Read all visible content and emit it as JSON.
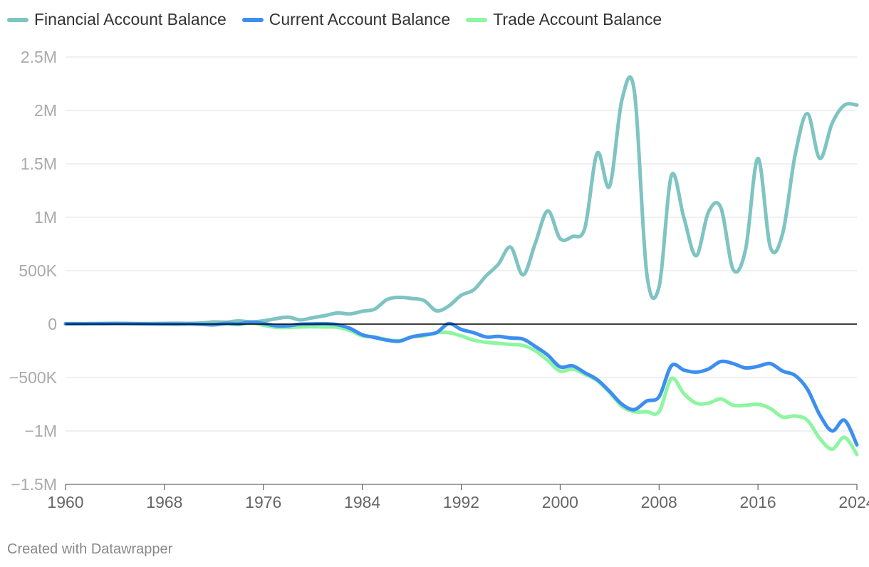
{
  "colors": {
    "financial": "#7ec4c2",
    "current": "#3d8ef0",
    "trade": "#8ef5a0",
    "grid": "#e1e1e1",
    "zero": "#000000",
    "tick_text": "#aaaaaa"
  },
  "footer": {
    "credit": "Created with Datawrapper"
  },
  "chart_data": {
    "type": "line",
    "title": "",
    "xlabel": "",
    "ylabel": "",
    "xlim": [
      1960,
      2024
    ],
    "ylim": [
      -1500000,
      2500000
    ],
    "grid": true,
    "legend_position": "top-left",
    "x_ticks": [
      1960,
      1968,
      1976,
      1984,
      1992,
      2000,
      2008,
      2016,
      2024
    ],
    "x_tick_labels": [
      "1960",
      "1968",
      "1976",
      "1984",
      "1992",
      "2000",
      "2008",
      "2016",
      "2024"
    ],
    "y_ticks": [
      2500000,
      2000000,
      1500000,
      1000000,
      500000,
      0,
      -500000,
      -1000000,
      -1500000
    ],
    "y_tick_labels": [
      "2.5M",
      "2M",
      "1.5M",
      "1M",
      "500K",
      "0",
      "−500K",
      "−1M",
      "−1.5M"
    ],
    "x": [
      1960,
      1961,
      1962,
      1963,
      1964,
      1965,
      1966,
      1967,
      1968,
      1969,
      1970,
      1971,
      1972,
      1973,
      1974,
      1975,
      1976,
      1977,
      1978,
      1979,
      1980,
      1981,
      1982,
      1983,
      1984,
      1985,
      1986,
      1987,
      1988,
      1989,
      1990,
      1991,
      1992,
      1993,
      1994,
      1995,
      1996,
      1997,
      1998,
      1999,
      2000,
      2001,
      2002,
      2003,
      2004,
      2005,
      2006,
      2007,
      2008,
      2009,
      2010,
      2011,
      2012,
      2013,
      2014,
      2015,
      2016,
      2017,
      2018,
      2019,
      2020,
      2021,
      2022,
      2023,
      2024
    ],
    "series": [
      {
        "name": "Financial Account Balance",
        "values": [
          2000,
          3000,
          4000,
          5000,
          5000,
          4000,
          4000,
          5000,
          7000,
          8000,
          7000,
          10000,
          20000,
          18000,
          30000,
          20000,
          30000,
          50000,
          65000,
          40000,
          60000,
          80000,
          105000,
          95000,
          120000,
          140000,
          230000,
          250000,
          240000,
          220000,
          125000,
          170000,
          270000,
          320000,
          450000,
          560000,
          720000,
          460000,
          760000,
          1060000,
          800000,
          820000,
          900000,
          1600000,
          1290000,
          2100000,
          2180000,
          480000,
          350000,
          1390000,
          1000000,
          640000,
          1050000,
          1090000,
          510000,
          700000,
          1550000,
          720000,
          850000,
          1580000,
          1970000,
          1550000,
          1880000,
          2050000,
          2050000
        ]
      },
      {
        "name": "Current Account Balance",
        "values": [
          3000,
          3000,
          4000,
          4000,
          6000,
          5000,
          3000,
          2000,
          1000,
          0,
          2000,
          -2000,
          -6000,
          7000,
          2000,
          18000,
          5000,
          -15000,
          -15000,
          -1000,
          2000,
          4000,
          -6000,
          -40000,
          -100000,
          -125000,
          -150000,
          -160000,
          -120000,
          -100000,
          -80000,
          5000,
          -50000,
          -80000,
          -120000,
          -115000,
          -130000,
          -140000,
          -210000,
          -290000,
          -400000,
          -390000,
          -455000,
          -520000,
          -630000,
          -750000,
          -800000,
          -720000,
          -680000,
          -390000,
          -430000,
          -450000,
          -420000,
          -350000,
          -370000,
          -410000,
          -395000,
          -370000,
          -440000,
          -480000,
          -610000,
          -850000,
          -1000000,
          -900000,
          -1130000
        ]
      },
      {
        "name": "Trade Account Balance",
        "values": [
          4000,
          5000,
          4000,
          5000,
          6000,
          5000,
          4000,
          4000,
          1000,
          1000,
          3000,
          -1000,
          -6000,
          1000,
          -4000,
          10000,
          -10000,
          -30000,
          -30000,
          -27000,
          -25000,
          -27000,
          -30000,
          -60000,
          -110000,
          -120000,
          -145000,
          -155000,
          -120000,
          -110000,
          -80000,
          -80000,
          -110000,
          -150000,
          -170000,
          -180000,
          -190000,
          -200000,
          -250000,
          -340000,
          -440000,
          -420000,
          -470000,
          -530000,
          -640000,
          -770000,
          -820000,
          -820000,
          -820000,
          -510000,
          -650000,
          -740000,
          -740000,
          -700000,
          -760000,
          -760000,
          -750000,
          -790000,
          -870000,
          -860000,
          -900000,
          -1070000,
          -1170000,
          -1060000,
          -1220000
        ]
      }
    ]
  }
}
